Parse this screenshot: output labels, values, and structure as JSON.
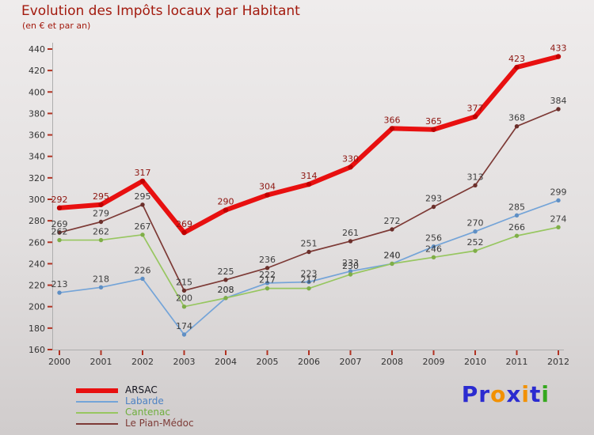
{
  "title": "Evolution des Impôts locaux par Habitant",
  "subtitle": "(en € et par an)",
  "logo": {
    "text": "Proxiti",
    "letters": [
      {
        "ch": "P",
        "color": "#2b2bd0"
      },
      {
        "ch": "r",
        "color": "#2b2bd0"
      },
      {
        "ch": "o",
        "color": "#f29100"
      },
      {
        "ch": "x",
        "color": "#2b2bd0"
      },
      {
        "ch": "i",
        "color": "#f29100"
      },
      {
        "ch": "t",
        "color": "#2b2bd0"
      },
      {
        "ch": "i",
        "color": "#35a81e"
      }
    ]
  },
  "chart_data": {
    "type": "line",
    "title": "Evolution des Impôts locaux par Habitant",
    "subtitle": "(en € et par an)",
    "categories": [
      "2000",
      "2001",
      "2002",
      "2003",
      "2004",
      "2005",
      "2006",
      "2007",
      "2008",
      "2009",
      "2010",
      "2011",
      "2012"
    ],
    "xlabel": "",
    "ylabel": "",
    "ylim": [
      160,
      440
    ],
    "ytick_step": 20,
    "grid": false,
    "legend_position": "bottom-left",
    "axis_tick_color": "#b23222",
    "axis_line_color": "#aeaeae",
    "tick_label_color": "#333333",
    "series": [
      {
        "name": "ARSAC",
        "color": "#e81010",
        "marker_color": "#c00000",
        "label_color": "#8d1510",
        "line_width": 6,
        "legend_thickness": 6,
        "legend_text_color": "#14141f",
        "values": [
          292,
          295,
          317,
          269,
          290,
          304,
          314,
          330,
          366,
          365,
          377,
          423,
          433
        ]
      },
      {
        "name": "Labarde",
        "color": "#74a4d8",
        "marker_color": "#5f8fc4",
        "label_color": "#3d3d3d",
        "line_width": 1.7,
        "legend_thickness": 2,
        "legend_text_color": "#4d82c3",
        "values": [
          213,
          218,
          226,
          174,
          208,
          222,
          223,
          233,
          240,
          256,
          270,
          285,
          299
        ]
      },
      {
        "name": "Cantenac",
        "color": "#97c660",
        "marker_color": "#7fae48",
        "label_color": "#3d3d3d",
        "line_width": 1.7,
        "legend_thickness": 2,
        "legend_text_color": "#6fae3e",
        "values": [
          262,
          262,
          267,
          200,
          208,
          217,
          217,
          230,
          240,
          246,
          252,
          266,
          274
        ]
      },
      {
        "name": "Le Pian-Médoc",
        "color": "#7d3a36",
        "marker_color": "#6b2f2b",
        "label_color": "#3d3d3d",
        "line_width": 1.7,
        "legend_thickness": 2,
        "legend_text_color": "#7d3a36",
        "values": [
          269,
          279,
          295,
          215,
          225,
          236,
          251,
          261,
          272,
          293,
          313,
          368,
          384
        ]
      }
    ]
  }
}
